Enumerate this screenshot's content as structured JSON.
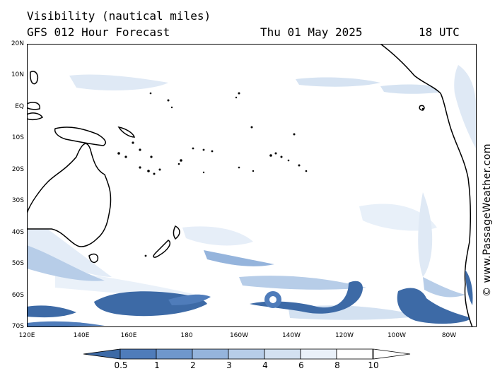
{
  "header": {
    "title": "Visibility (nautical miles)",
    "model": "GFS 012 Hour Forecast",
    "date": "Thu 01 May 2025",
    "time": "18 UTC"
  },
  "axes": {
    "lat_labels": [
      "20N",
      "10N",
      "EQ",
      "10S",
      "20S",
      "30S",
      "40S",
      "50S",
      "60S",
      "70S"
    ],
    "lon_labels": [
      "120E",
      "140E",
      "160E",
      "180",
      "160W",
      "140W",
      "120W",
      "100W",
      "80W"
    ]
  },
  "credit": "© www.PassageWeather.com",
  "colorbar": {
    "labels": [
      "0.5",
      "1",
      "2",
      "3",
      "4",
      "6",
      "8",
      "10"
    ],
    "colors": [
      "#3d6aa6",
      "#4f7cba",
      "#6f97cc",
      "#95b4dc",
      "#b7cde8",
      "#d3e1f1",
      "#eaf1f9",
      "#ffffff"
    ]
  },
  "colors": {
    "land_border": "#000000",
    "background": "#ffffff"
  }
}
